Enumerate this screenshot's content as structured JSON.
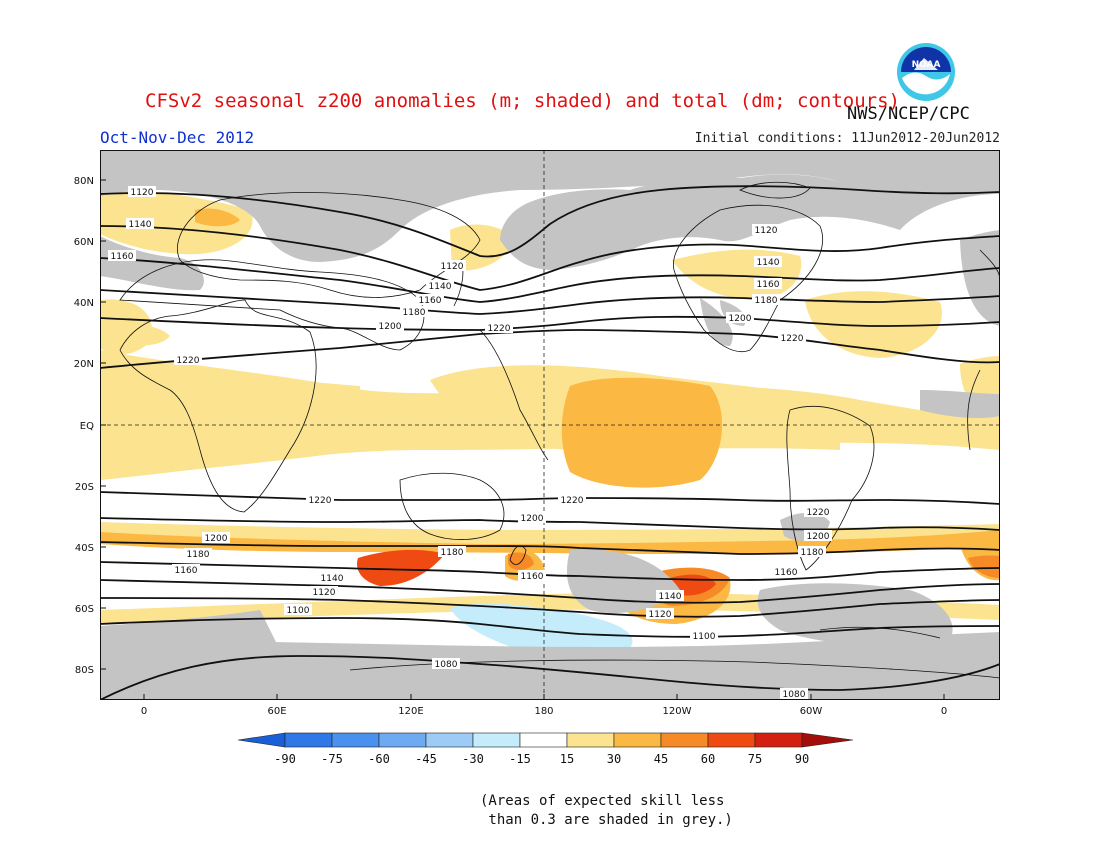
{
  "header": {
    "title": "CFSv2 seasonal z200 anomalies (m; shaded) and total (dm; contours)",
    "period": "Oct-Nov-Dec 2012",
    "initial_conditions": "Initial conditions: 11Jun2012-20Jun2012",
    "agency": "NWS/NCEP/CPC",
    "logo_text": "NOAA"
  },
  "axes": {
    "lat_labels": [
      "80N",
      "60N",
      "40N",
      "20N",
      "EQ",
      "20S",
      "40S",
      "60S",
      "80S"
    ],
    "lon_labels": [
      "0",
      "60E",
      "120E",
      "180",
      "120W",
      "60W",
      "0"
    ]
  },
  "contours": [
    {
      "value": "1080"
    },
    {
      "value": "1100"
    },
    {
      "value": "1120"
    },
    {
      "value": "1140"
    },
    {
      "value": "1160"
    },
    {
      "value": "1180"
    },
    {
      "value": "1200"
    },
    {
      "value": "1220"
    }
  ],
  "colorbar": {
    "labels": [
      "-90",
      "-75",
      "-60",
      "-45",
      "-30",
      "-15",
      "15",
      "30",
      "45",
      "60",
      "75",
      "90"
    ],
    "colors": [
      "#1a5fd6",
      "#2e78e8",
      "#4a90ee",
      "#6eaaf2",
      "#9cccf6",
      "#c4ecfa",
      "#ffffff",
      "#fbe38f",
      "#fbb842",
      "#f68a26",
      "#ef4a12",
      "#d21f10",
      "#a40e0a"
    ]
  },
  "palette": {
    "skill_mask": "#c4c4c4",
    "yellow": "#fbe38f",
    "orange": "#fbb842",
    "dark_orange": "#f68a26",
    "red": "#ef4a12",
    "light_blue": "#c4ecfa"
  },
  "note": "(Areas of expected skill less\n than 0.3 are shaded in grey.)"
}
